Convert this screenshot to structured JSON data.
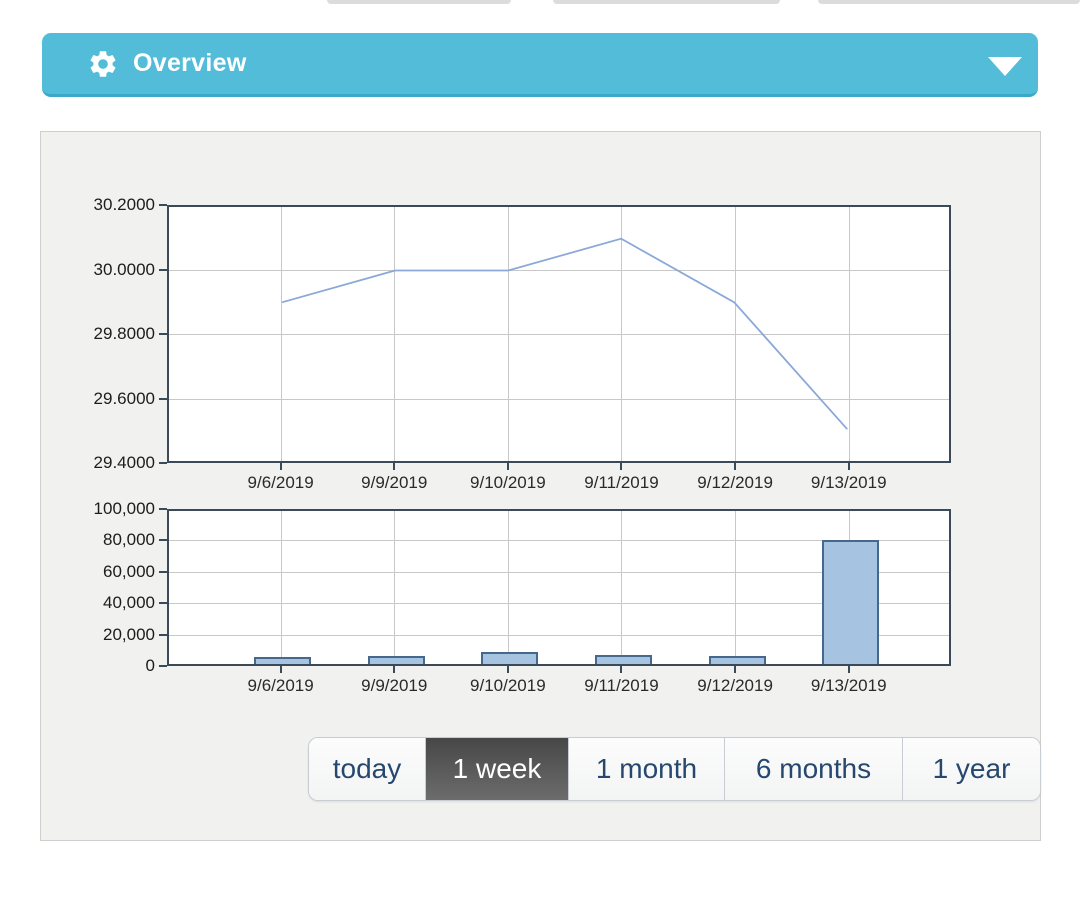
{
  "header": {
    "title": "Overview",
    "background_color": "#53bdd9",
    "border_color": "#3aa8c8",
    "icons": [
      "gear-icon",
      "chevron-down-icon"
    ]
  },
  "time_range": {
    "options": [
      {
        "label": "today",
        "selected": false
      },
      {
        "label": "1 week",
        "selected": true
      },
      {
        "label": "1 month",
        "selected": false
      },
      {
        "label": "6 months",
        "selected": false
      },
      {
        "label": "1 year",
        "selected": false
      }
    ],
    "selected_bg": "#555555",
    "text_color": "#26476e"
  },
  "chart_data": [
    {
      "type": "line",
      "title": "",
      "x": [
        "9/6/2019",
        "9/9/2019",
        "9/10/2019",
        "9/11/2019",
        "9/12/2019",
        "9/13/2019"
      ],
      "values": [
        29.9,
        30.0,
        30.0,
        30.1,
        29.9,
        29.5
      ],
      "ylim": [
        29.4,
        30.2
      ],
      "ytick_labels": [
        "30.2000",
        "30.0000",
        "29.8000",
        "29.6000",
        "29.4000"
      ],
      "ytick_values": [
        30.2,
        30.0,
        29.8,
        29.6,
        29.4
      ],
      "grid": true,
      "legend": "none",
      "line_color": "#8aa8d8"
    },
    {
      "type": "bar",
      "title": "",
      "x": [
        "9/6/2019",
        "9/9/2019",
        "9/10/2019",
        "9/11/2019",
        "9/12/2019",
        "9/13/2019"
      ],
      "values": [
        4500,
        5500,
        8000,
        6000,
        5500,
        81000
      ],
      "ylim": [
        0,
        100000
      ],
      "ytick_labels": [
        "100,000",
        "80,000",
        "60,000",
        "40,000",
        "20,000",
        "0"
      ],
      "ytick_values": [
        100000,
        80000,
        60000,
        40000,
        20000,
        0
      ],
      "grid": true,
      "legend": "none",
      "bar_fill": "#a6c3e1",
      "bar_border": "#46688c"
    }
  ]
}
